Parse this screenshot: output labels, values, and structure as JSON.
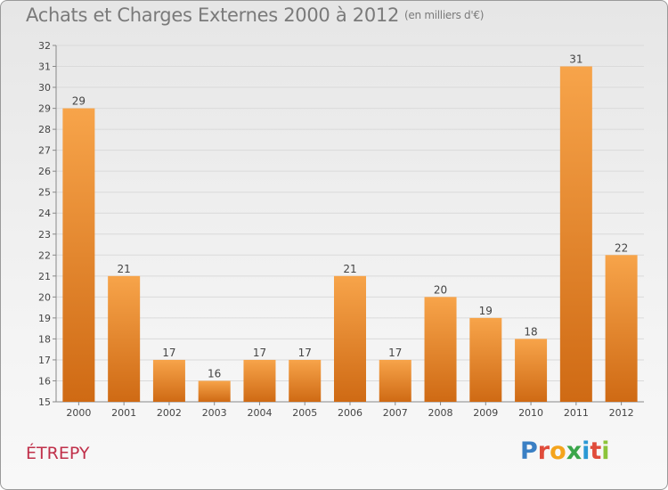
{
  "title": "Achats et Charges Externes 2000 à 2012",
  "subtitle": "(en milliers d'€)",
  "commune": "ÉTREPY",
  "logo": {
    "letters": [
      "P",
      "r",
      "o",
      "x",
      "i",
      "t",
      "i"
    ],
    "colors": [
      "#3a7fc4",
      "#e04c3b",
      "#f4a41c",
      "#3aa64a",
      "#2a98d4",
      "#e04c3b",
      "#8cc43a"
    ]
  },
  "colors": {
    "bar_top": "#f7a44a",
    "bar_bottom": "#cf6a14",
    "grid": "#dadada",
    "axis_text": "#444444"
  },
  "chart_data": {
    "type": "bar",
    "categories": [
      "2000",
      "2001",
      "2002",
      "2003",
      "2004",
      "2005",
      "2006",
      "2007",
      "2008",
      "2009",
      "2010",
      "2011",
      "2012"
    ],
    "values": [
      29,
      21,
      17,
      16,
      17,
      17,
      21,
      17,
      20,
      19,
      18,
      31,
      22
    ],
    "ylim": [
      15,
      32
    ],
    "yticks": [
      15,
      16,
      17,
      18,
      19,
      20,
      21,
      22,
      23,
      24,
      25,
      26,
      27,
      28,
      29,
      30,
      31,
      32
    ],
    "grid": true
  }
}
